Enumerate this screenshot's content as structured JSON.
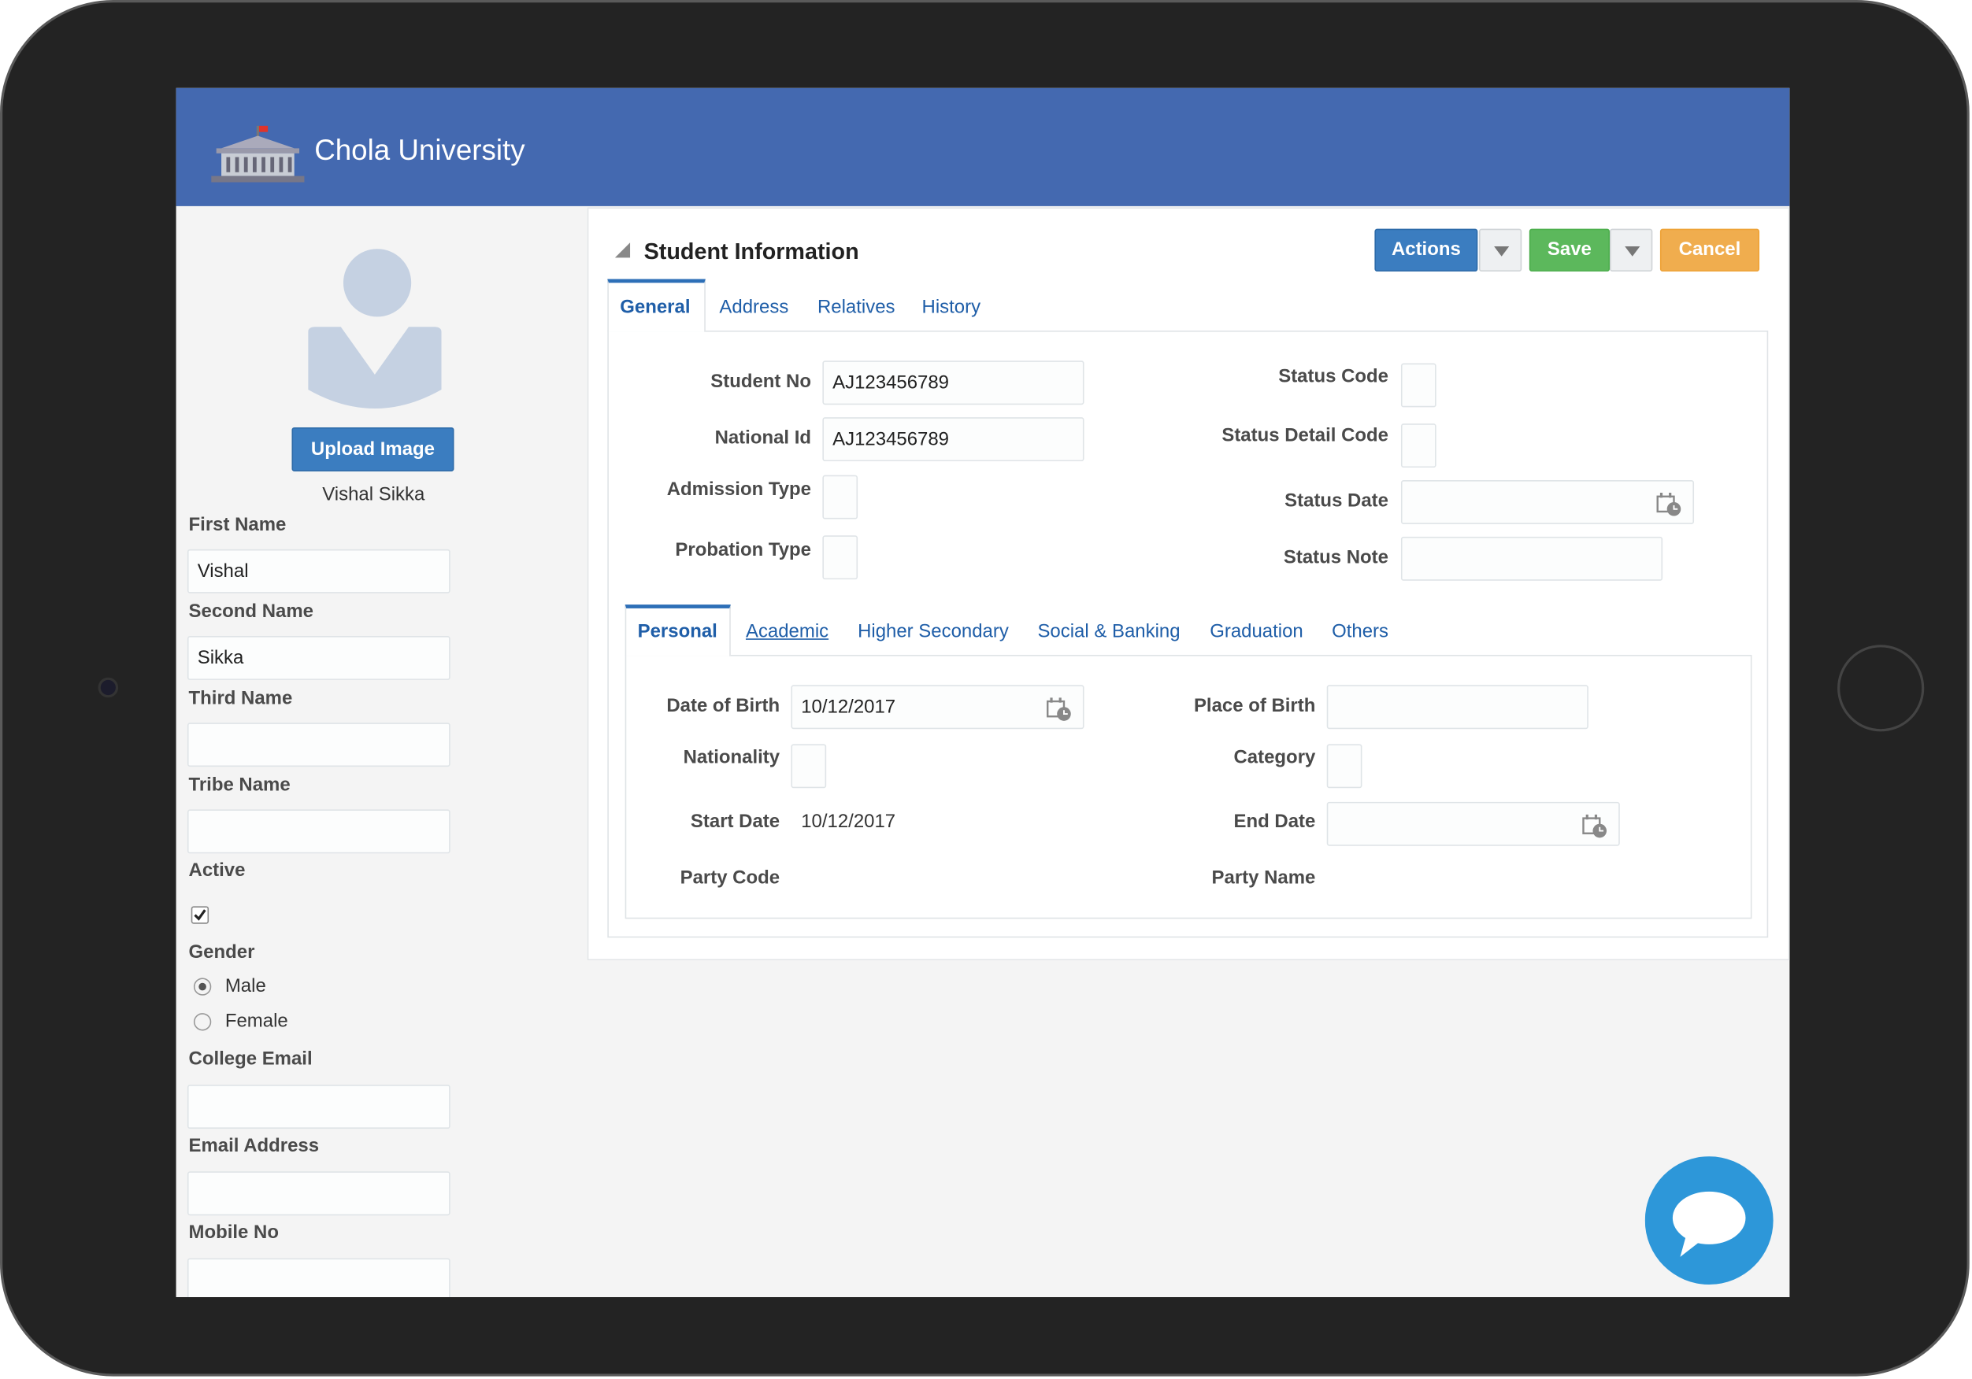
{
  "header": {
    "title": "Chola University"
  },
  "sidebar": {
    "upload_button": "Upload Image",
    "full_name": "Vishal Sikka",
    "fields": [
      {
        "label": "First Name",
        "value": "Vishal"
      },
      {
        "label": "Second Name",
        "value": "Sikka"
      },
      {
        "label": "Third Name"
      },
      {
        "label": "Tribe Name"
      }
    ],
    "active": {
      "label": "Active"
    },
    "gender": {
      "label": "Gender",
      "options": [
        "Male",
        "Female"
      ]
    },
    "contact_fields": [
      {
        "label": "College Email"
      },
      {
        "label": "Email Address"
      },
      {
        "label": "Mobile No"
      }
    ]
  },
  "panel": {
    "title": "Student Information",
    "buttons": [
      "Actions",
      "Save",
      "Cancel"
    ],
    "tabs": [
      "General",
      "Address",
      "Relatives",
      "History"
    ],
    "general": {
      "left": [
        {
          "label": "Student No",
          "value": "AJ123456789"
        },
        {
          "label": "National Id",
          "value": "AJ123456789"
        },
        {
          "label": "Admission Type"
        },
        {
          "label": "Probation Type"
        }
      ],
      "right": [
        {
          "label": "Status Code"
        },
        {
          "label": "Status Detail Code"
        },
        {
          "label": "Status Date"
        },
        {
          "label": "Status Note"
        }
      ]
    },
    "subtabs": [
      "Personal",
      "Academic",
      "Higher Secondary",
      "Social & Banking",
      "Graduation",
      "Others"
    ],
    "personal": {
      "left": [
        {
          "label": "Date of Birth",
          "value": "10/12/2017"
        },
        {
          "label": "Nationality"
        },
        {
          "label": "Start Date",
          "value": "10/12/2017"
        },
        {
          "label": "Party Code"
        }
      ],
      "right": [
        {
          "label": "Place of Birth"
        },
        {
          "label": "Category"
        },
        {
          "label": "End Date"
        },
        {
          "label": "Party Name"
        }
      ]
    }
  }
}
